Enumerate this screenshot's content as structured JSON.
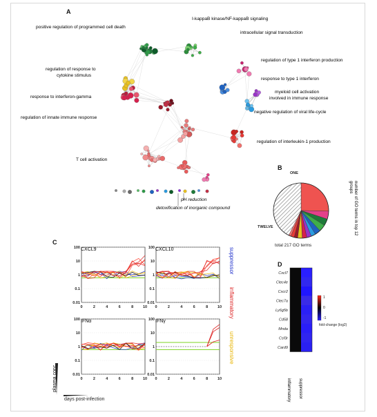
{
  "panel_labels": {
    "a": "A",
    "b": "B",
    "c": "C",
    "d": "D"
  },
  "network": {
    "labels": [
      {
        "text": "positive regulation of programmed cell death",
        "color": "#1f7a3a"
      },
      {
        "text": "I-kappaB kinase/NF-kappaB signaling",
        "color": "#3fae49"
      },
      {
        "text": "intracellular signal transduction",
        "color": "#3fae49"
      },
      {
        "text": "regulation of type 1 interferon production",
        "color": "#e4408a"
      },
      {
        "text": "regulation of response to",
        "color": "#e8c020"
      },
      {
        "text": "cytokine stimulus",
        "color": "#e8c020"
      },
      {
        "text": "response to type 1 interferon",
        "color": "#1f62c0"
      },
      {
        "text": "response to interferon-gamma",
        "color": "#d6204d"
      },
      {
        "text": "myeloid cell activation",
        "color": "#9a33c7"
      },
      {
        "text": "involved in immune response",
        "color": "#9a33c7"
      },
      {
        "text": "regulation of innate immune response",
        "color": "#9a1a2a"
      },
      {
        "text": "negative regulation of viral life-cycle",
        "color": "#2a9be0"
      },
      {
        "text": "regulation of interleukin-1 production",
        "color": "#e63a36"
      },
      {
        "text": "T cell activation",
        "color": "#f07070"
      },
      {
        "text": "pH reduction",
        "color": "#222222"
      },
      {
        "text": "detoxification of inorganic compound",
        "color": "#222222"
      }
    ]
  },
  "pie": {
    "top": "ONE",
    "bottom": "TWELVE",
    "side": "number of GO terms in top 12 groups",
    "total": "total 217 GO terms"
  },
  "chart_data": [
    {
      "type": "line",
      "title": "CXCL9",
      "ylim": [
        0.01,
        100
      ],
      "yscale": "log",
      "xlim": [
        0,
        10
      ],
      "yticks": [
        "100",
        "10",
        "1",
        "0.1",
        "0.01"
      ],
      "xticks": [
        "0",
        "2",
        "4",
        "6",
        "8",
        "10"
      ]
    },
    {
      "type": "line",
      "title": "CXCL10",
      "ylim": [
        0.01,
        100
      ],
      "yscale": "log",
      "xlim": [
        0,
        10
      ],
      "yticks": [
        "100",
        "10",
        "1",
        "0.1",
        "0.01"
      ],
      "xticks": [
        "0",
        "2",
        "4",
        "6",
        "8",
        "10"
      ]
    },
    {
      "type": "line",
      "title": "IFNα",
      "ylim": [
        0.01,
        100
      ],
      "yscale": "log",
      "xlim": [
        0,
        10
      ],
      "yticks": [
        "100",
        "10",
        "1",
        "0.1",
        "0.01"
      ],
      "xticks": [
        "0",
        "2",
        "4",
        "6",
        "8",
        "10"
      ]
    },
    {
      "type": "line",
      "title": "IFNγ",
      "ylim": [
        0.01,
        100
      ],
      "yscale": "log",
      "xlim": [
        0,
        10
      ],
      "yticks": [
        "100",
        "10",
        "1",
        "0.1",
        "0.01"
      ],
      "xticks": [
        "0",
        "2",
        "4",
        "6",
        "8",
        "10"
      ]
    },
    {
      "type": "heatmap",
      "rows": [
        "Cxcl7",
        "Clec4e",
        "Cxcr2",
        "Clec7a",
        "Ly6g5b",
        "Cd58",
        "Mnda",
        "Csf3r",
        "Card9"
      ],
      "columns": [
        "inflammatory",
        "suppressor"
      ],
      "legend_ticks": [
        "1",
        "0",
        "-1"
      ],
      "legend_title": "fold-change (log2)"
    }
  ],
  "panel_c": {
    "ylabel": "plasma conc.",
    "xlabel": "days post-infection",
    "groups": [
      {
        "name": "suppressor",
        "color": "#2233cc"
      },
      {
        "name": "inflammatory",
        "color": "#dd2222"
      },
      {
        "name": "unresponsive",
        "color": "#e8b400"
      }
    ]
  }
}
